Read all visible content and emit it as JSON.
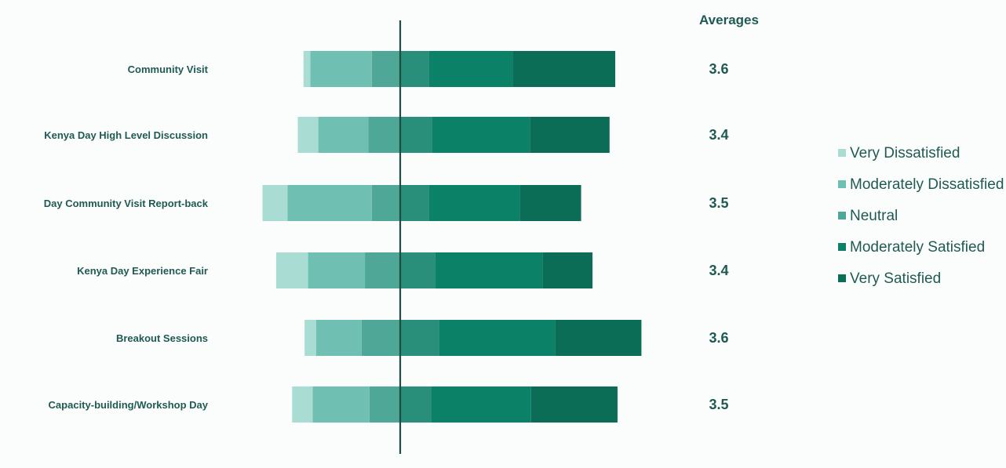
{
  "chart_data": {
    "type": "bar",
    "subtype": "diverging-stacked-horizontal",
    "title": "",
    "averages_label": "Averages",
    "categories": [
      "Community Visit",
      "Kenya Day High Level Discussion",
      "Day Community Visit Report-back",
      "Kenya Day Experience Fair",
      "Breakout Sessions",
      "Capacity-building/Workshop Day"
    ],
    "averages": [
      "3.6",
      "3.4",
      "3.5",
      "3.4",
      "3.6",
      "3.5"
    ],
    "xlim": [
      -60,
      100
    ],
    "grid": false,
    "legend_position": "right",
    "series": [
      {
        "name": "Very Dissatisfied",
        "color": "#a9dcd3",
        "values": [
          3,
          9,
          11,
          14,
          5,
          9
        ]
      },
      {
        "name": "Moderately Dissatisfied",
        "color": "#6fbfb2",
        "values": [
          27,
          22,
          37,
          25,
          20,
          25
        ]
      },
      {
        "name": "Neutral",
        "color": "#4fa897",
        "values": [
          25,
          28,
          25,
          31,
          34,
          27
        ]
      },
      {
        "name": "Moderately Satisfied",
        "color": "#0b8267",
        "values": [
          37,
          43,
          40,
          47,
          51,
          44
        ]
      },
      {
        "name": "Very Satisfied",
        "color": "#0b6d55",
        "values": [
          45,
          35,
          27,
          22,
          38,
          38
        ]
      }
    ],
    "neutral_color_left": "#4fa897",
    "neutral_color_right": "#298f7b",
    "axis_line_color": "#1f4d43",
    "label_color": "#1f5a52"
  }
}
